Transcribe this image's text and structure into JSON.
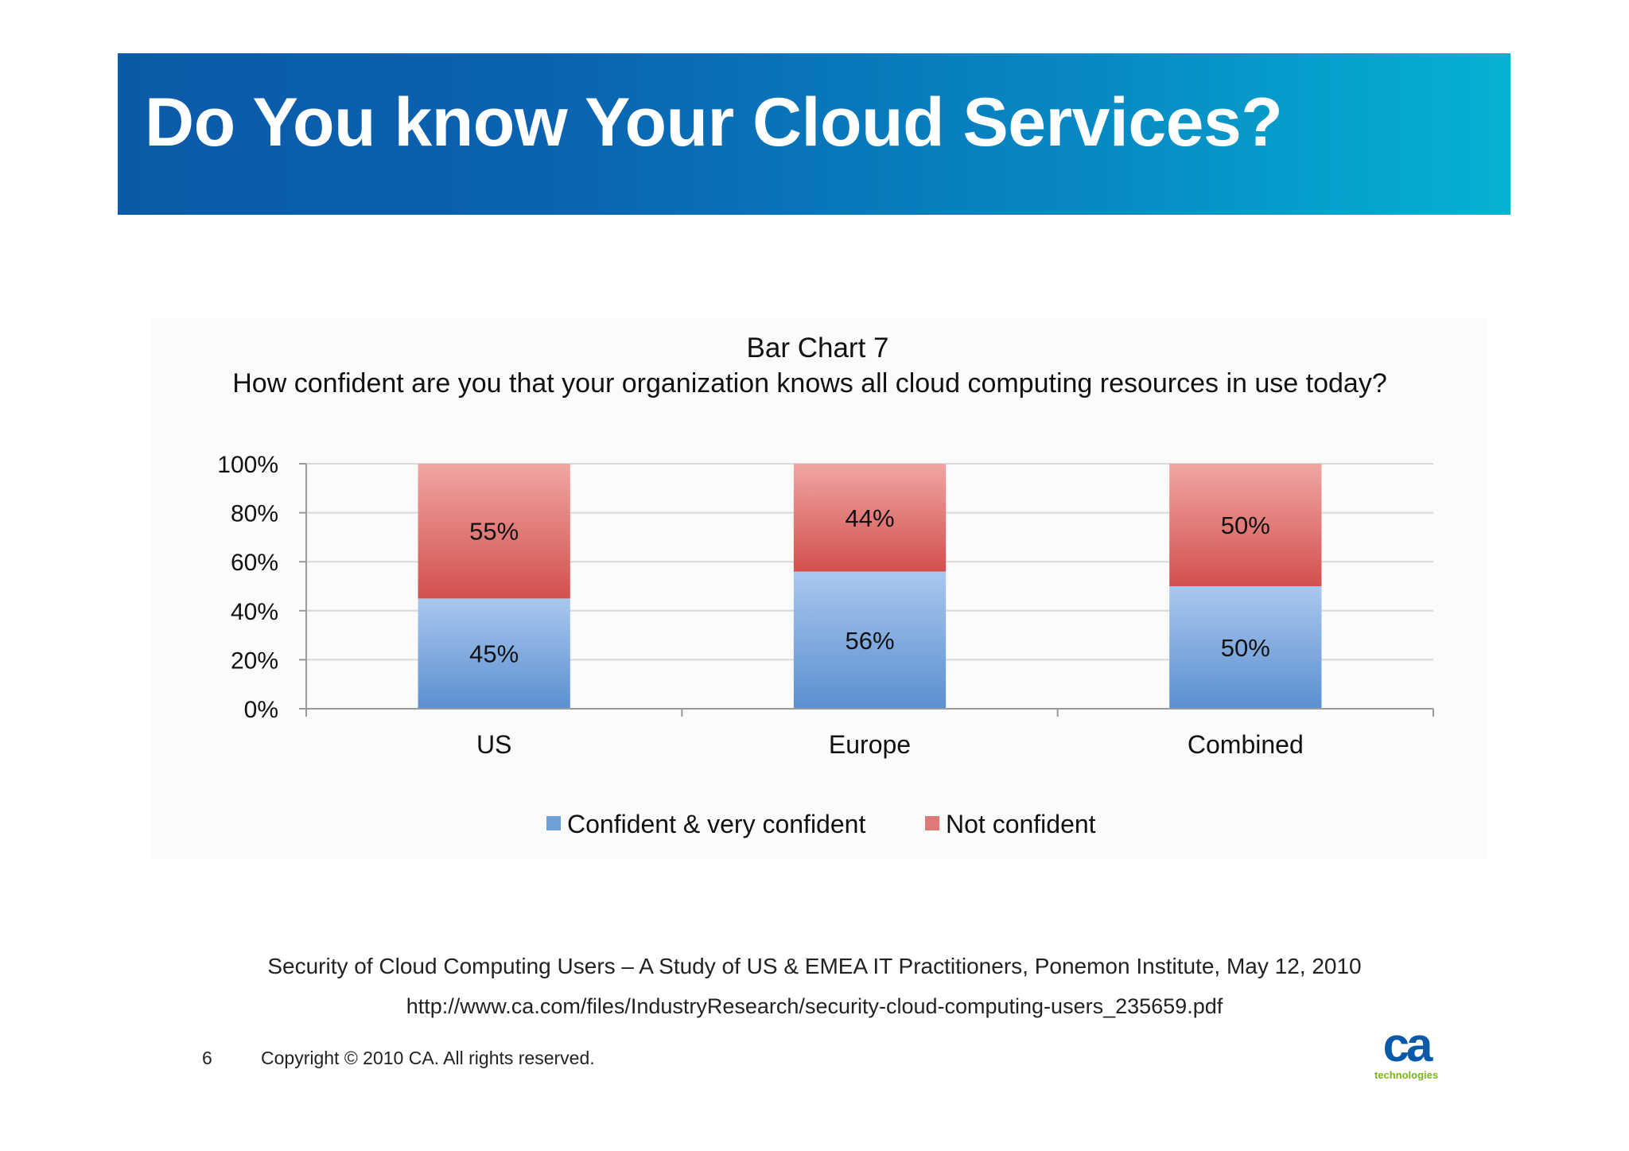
{
  "slide": {
    "title": "Do You know Your Cloud Services?",
    "page_number": "6",
    "copyright": "Copyright © 2010 CA. All rights reserved.",
    "source_line1": "Security of Cloud Computing Users – A Study of US & EMEA IT Practitioners, Ponemon Institute, May 12, 2010",
    "source_line2": "http://www.ca.com/files/IndustryResearch/security-cloud-computing-users_235659.pdf",
    "logo_mark": "ca",
    "logo_word": "technologies"
  },
  "colors": {
    "banner_start": "#0b5aa8",
    "banner_end": "#05b2d1",
    "confident": "#6f9fd8",
    "not_confident": "#e07a78",
    "logo_blue": "#0a5aa8",
    "logo_green": "#7ab51d"
  },
  "chart_data": {
    "type": "bar",
    "stacked": true,
    "title": "Bar Chart 7",
    "subtitle": "How confident are you that your organization knows all cloud computing resources in use today?",
    "categories": [
      "US",
      "Europe",
      "Combined"
    ],
    "series": [
      {
        "name": "Confident & very confident",
        "values": [
          45,
          56,
          50
        ],
        "labels": [
          "45%",
          "56%",
          "50%"
        ],
        "color": "#6f9fd8"
      },
      {
        "name": "Not confident",
        "values": [
          55,
          44,
          50
        ],
        "labels": [
          "55%",
          "44%",
          "50%"
        ],
        "color": "#e07a78"
      }
    ],
    "ylim": [
      0,
      100
    ],
    "yticks": [
      "0%",
      "20%",
      "40%",
      "60%",
      "80%",
      "100%"
    ],
    "ytick_values": [
      0,
      20,
      40,
      60,
      80,
      100
    ],
    "grid": true,
    "legend": "bottom"
  }
}
